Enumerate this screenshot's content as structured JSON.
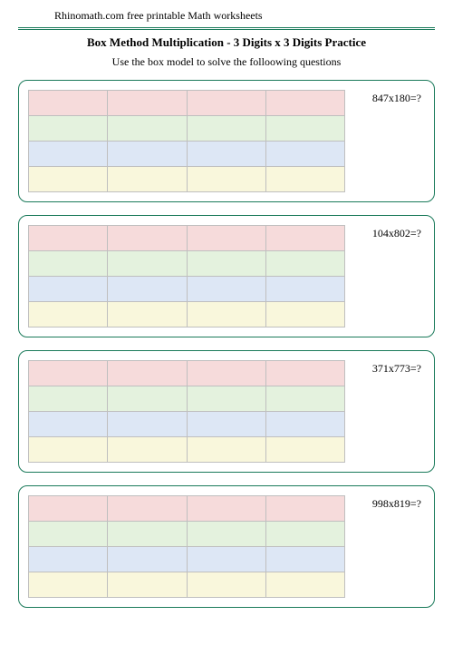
{
  "header_text": "Rhinomath.com free printable Math worksheets",
  "title": "Box Method Multiplication - 3 Digits x 3 Digits Practice",
  "subtitle": "Use the box model to solve the folloowing questions",
  "colors": {
    "hr": "#1a7a5a",
    "problem_border": "#1a7a5a",
    "row_a": "#f6dbdb",
    "row_b": "#e4f2de",
    "row_c": "#dde7f5",
    "row_d": "#f9f7dc",
    "cell_border": "#bfbfbf"
  },
  "grid": {
    "rows": 4,
    "cols": 4
  },
  "problems": [
    {
      "question": "847x180=?"
    },
    {
      "question": "104x802=?"
    },
    {
      "question": "371x773=?"
    },
    {
      "question": "998x819=?"
    }
  ]
}
